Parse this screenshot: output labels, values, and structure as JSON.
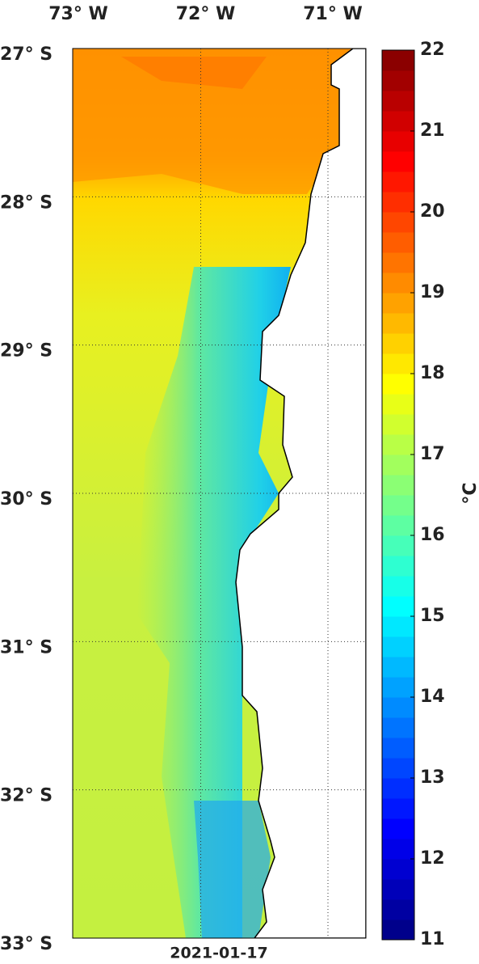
{
  "map": {
    "lon_labels": [
      "73° W",
      "72° W",
      "71° W"
    ],
    "lat_labels": [
      "27° S",
      "28° S",
      "29° S",
      "30° S",
      "31° S",
      "32° S",
      "33° S"
    ],
    "colorbar": {
      "range": [
        11,
        22
      ],
      "ticks": [
        11,
        12,
        13,
        14,
        15,
        16,
        17,
        18,
        19,
        20,
        21,
        22
      ],
      "unit": "°C"
    },
    "date": "2021-01-17"
  }
}
